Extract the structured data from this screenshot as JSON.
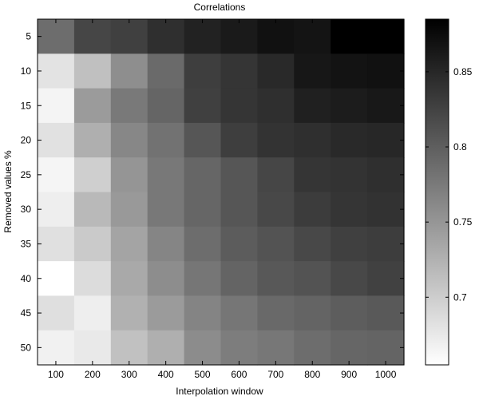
{
  "chart_data": {
    "type": "heatmap",
    "title": "Correlations",
    "xlabel": "Interpolation window",
    "ylabel": "Removed values %",
    "x_categories": [
      "100",
      "200",
      "300",
      "400",
      "500",
      "600",
      "700",
      "800",
      "900",
      "1000"
    ],
    "y_categories": [
      "5",
      "10",
      "15",
      "20",
      "25",
      "30",
      "35",
      "40",
      "45",
      "50"
    ],
    "values": [
      [
        0.787,
        0.822,
        0.827,
        0.843,
        0.854,
        0.862,
        0.87,
        0.867,
        0.885,
        0.885
      ],
      [
        0.68,
        0.712,
        0.757,
        0.789,
        0.829,
        0.837,
        0.848,
        0.864,
        0.868,
        0.87
      ],
      [
        0.665,
        0.745,
        0.776,
        0.794,
        0.827,
        0.837,
        0.843,
        0.856,
        0.86,
        0.863
      ],
      [
        0.682,
        0.727,
        0.763,
        0.782,
        0.807,
        0.829,
        0.839,
        0.843,
        0.848,
        0.85
      ],
      [
        0.664,
        0.698,
        0.751,
        0.777,
        0.793,
        0.807,
        0.822,
        0.837,
        0.839,
        0.843
      ],
      [
        0.67,
        0.718,
        0.747,
        0.777,
        0.793,
        0.807,
        0.82,
        0.831,
        0.837,
        0.84
      ],
      [
        0.683,
        0.703,
        0.737,
        0.765,
        0.787,
        0.802,
        0.81,
        0.82,
        0.827,
        0.83
      ],
      [
        0.655,
        0.687,
        0.733,
        0.758,
        0.779,
        0.795,
        0.806,
        0.81,
        0.82,
        0.826
      ],
      [
        0.684,
        0.67,
        0.725,
        0.745,
        0.766,
        0.779,
        0.79,
        0.795,
        0.801,
        0.805
      ],
      [
        0.668,
        0.675,
        0.711,
        0.727,
        0.759,
        0.772,
        0.778,
        0.787,
        0.793,
        0.795
      ]
    ],
    "colormap": "gray-reversed",
    "clim": [
      0.655,
      0.885
    ],
    "colorbar_ticks": [
      0.7,
      0.75,
      0.8,
      0.85
    ],
    "colorbar_labels": [
      "0.7",
      "0.75",
      "0.8",
      "0.85"
    ]
  }
}
